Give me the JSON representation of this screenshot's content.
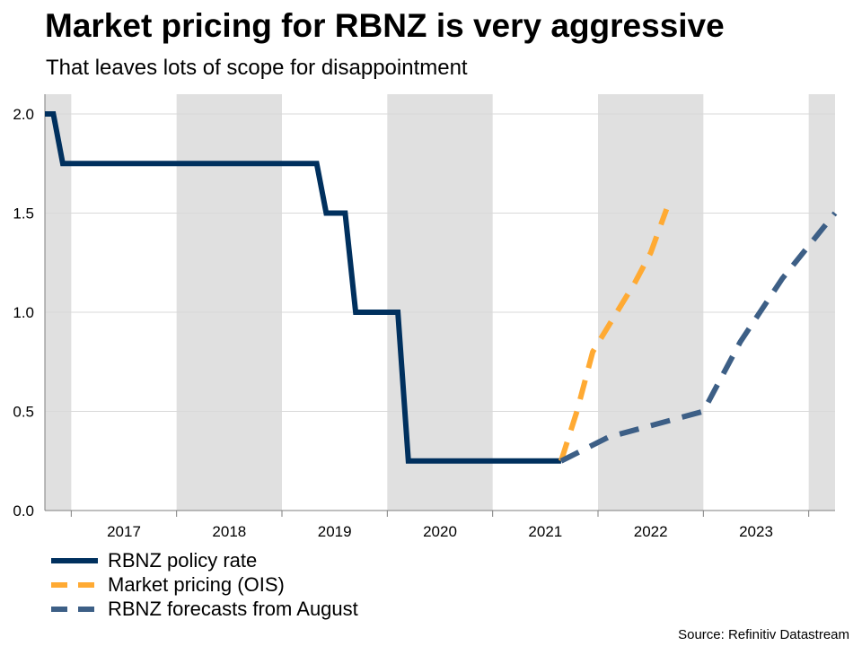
{
  "title": "Market pricing for RBNZ is very aggressive",
  "subtitle": "That leaves lots of scope for disappointment",
  "source": "Source: Refinitiv Datastream",
  "colors": {
    "policy": "#00305e",
    "market": "#ffaa33",
    "forecast": "#3d5f86",
    "band": "#e0e0e0",
    "grid": "#d9d9d9",
    "axis": "#7f7f7f"
  },
  "chart_data": {
    "type": "line",
    "title": "Market pricing for RBNZ is very aggressive",
    "xlabel": "",
    "ylabel": "",
    "xlim": [
      2016.25,
      2023.75
    ],
    "ylim": [
      0,
      2.0
    ],
    "yticks": [
      "0.0",
      "0.5",
      "1.0",
      "1.5",
      "2.0"
    ],
    "ytick_values": [
      0,
      0.5,
      1.0,
      1.5,
      2.0
    ],
    "year_labels": [
      "2017",
      "2018",
      "2019",
      "2020",
      "2021",
      "2022",
      "2023"
    ],
    "year_centers": [
      2017.0,
      2018.0,
      2019.0,
      2020.0,
      2021.0,
      2022.0,
      2023.0
    ],
    "shaded_years": [
      [
        2016.25,
        2016.5
      ],
      [
        2017.5,
        2018.5
      ],
      [
        2019.5,
        2020.5
      ],
      [
        2021.5,
        2022.5
      ],
      [
        2023.5,
        2023.75
      ]
    ],
    "series": [
      {
        "name": "RBNZ policy rate",
        "style": "solid",
        "x": [
          2016.25,
          2016.33,
          2016.42,
          2018.83,
          2018.92,
          2019.1,
          2019.2,
          2019.6,
          2019.7,
          2021.15
        ],
        "y": [
          2.0,
          2.0,
          1.75,
          1.75,
          1.5,
          1.5,
          1.0,
          1.0,
          0.25,
          0.25
        ]
      },
      {
        "name": "Market pricing (OIS)",
        "style": "dashed",
        "x": [
          2021.15,
          2021.3,
          2021.45,
          2021.85,
          2022.0,
          2022.15
        ],
        "y": [
          0.25,
          0.5,
          0.8,
          1.15,
          1.3,
          1.52
        ]
      },
      {
        "name": "RBNZ forecasts from August",
        "style": "dashed",
        "x": [
          2021.15,
          2021.6,
          2022.5,
          2022.85,
          2023.25,
          2023.75
        ],
        "y": [
          0.25,
          0.37,
          0.5,
          0.85,
          1.17,
          1.5
        ]
      }
    ],
    "legend_position": "bottom-left"
  }
}
